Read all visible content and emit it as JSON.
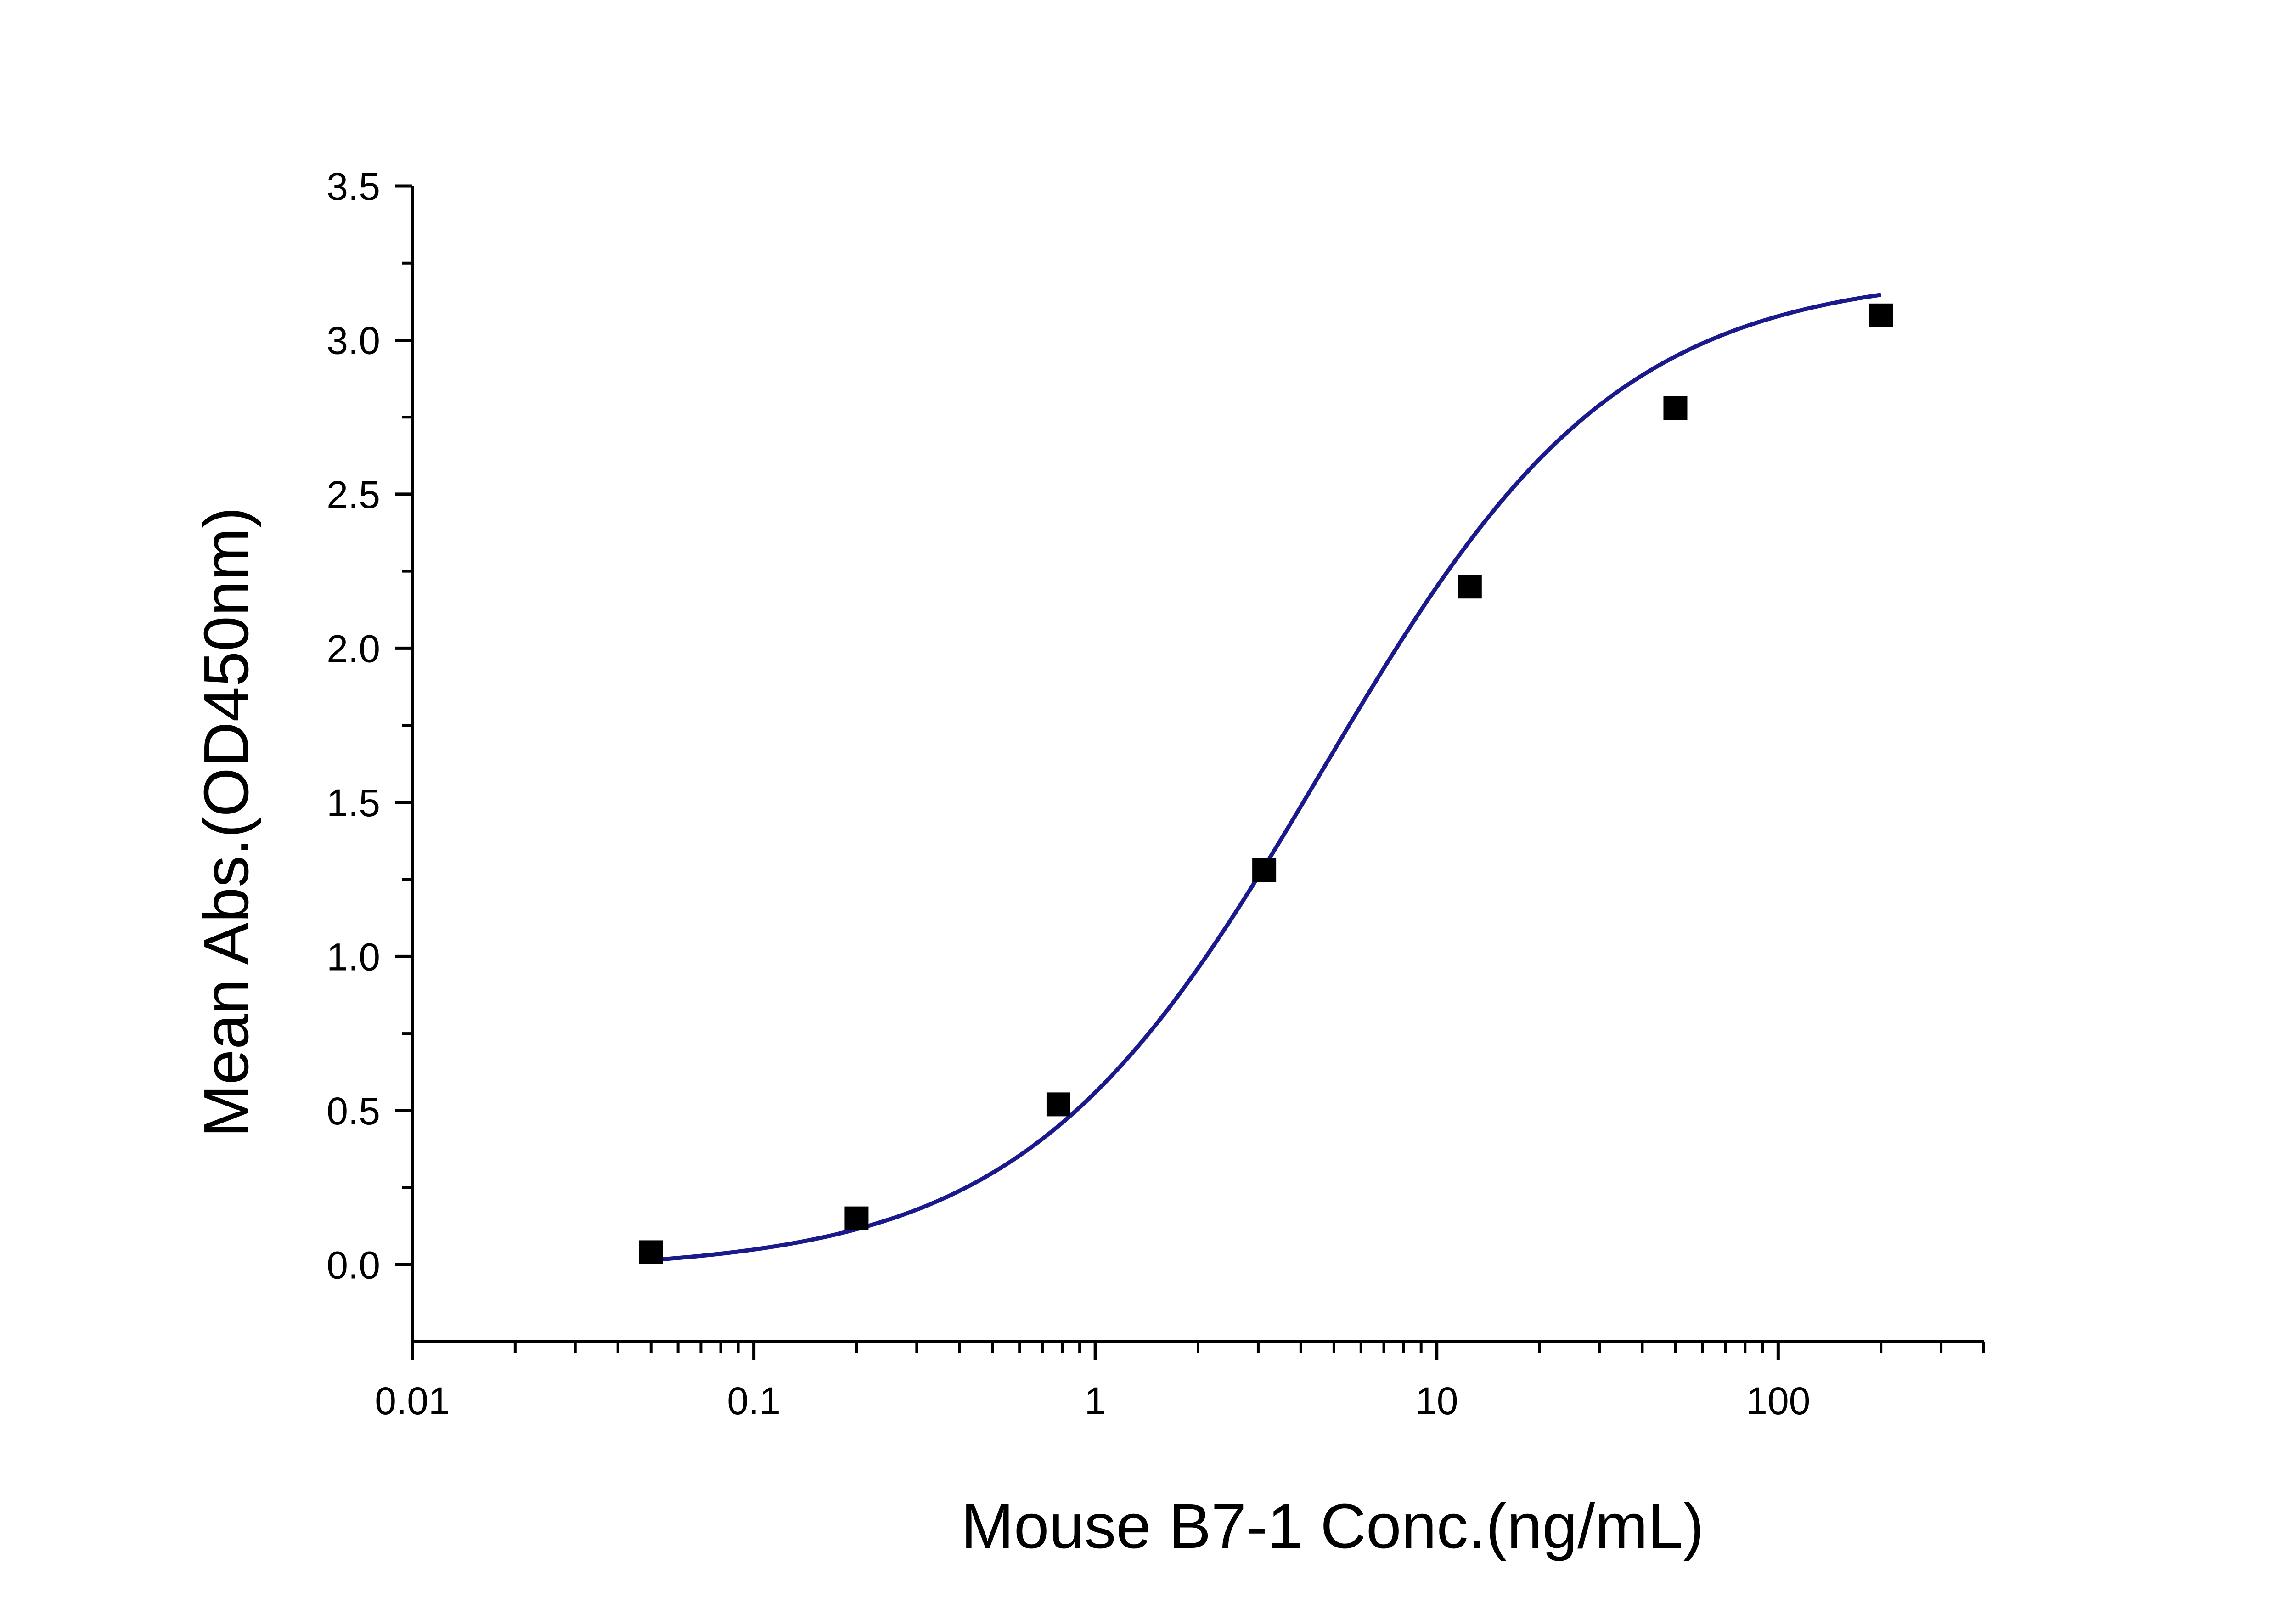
{
  "chart_data": {
    "type": "scatter",
    "title": "",
    "xlabel": "Mouse B7-1 Conc.(ng/mL)",
    "ylabel": "Mean Abs.(OD450nm)",
    "x_scale": "log",
    "xlim": [
      0.01,
      400
    ],
    "ylim": [
      -0.25,
      3.5
    ],
    "x_ticks": [
      0.01,
      0.1,
      1,
      10,
      100
    ],
    "x_tick_labels": [
      "0.01",
      "0.1",
      "1",
      "10",
      "100"
    ],
    "y_ticks": [
      0.0,
      0.5,
      1.0,
      1.5,
      2.0,
      2.5,
      3.0,
      3.5
    ],
    "y_tick_labels": [
      "0.0",
      "0.5",
      "1.0",
      "1.5",
      "2.0",
      "2.5",
      "3.0",
      "3.5"
    ],
    "grid": false,
    "legend": "none",
    "series": [
      {
        "x": [
          0.05,
          0.2,
          0.78,
          3.125,
          12.5,
          50,
          200
        ],
        "y": [
          0.04,
          0.15,
          0.52,
          1.28,
          2.2,
          2.78,
          3.08
        ],
        "marker": "square",
        "marker_color": "#000000",
        "fit_curve": "4PL",
        "fit_color": "#1a1a8c"
      }
    ],
    "fit_params": {
      "bottom": -0.02,
      "top": 3.22,
      "ec50": 4.6,
      "hill": 1.0
    }
  }
}
